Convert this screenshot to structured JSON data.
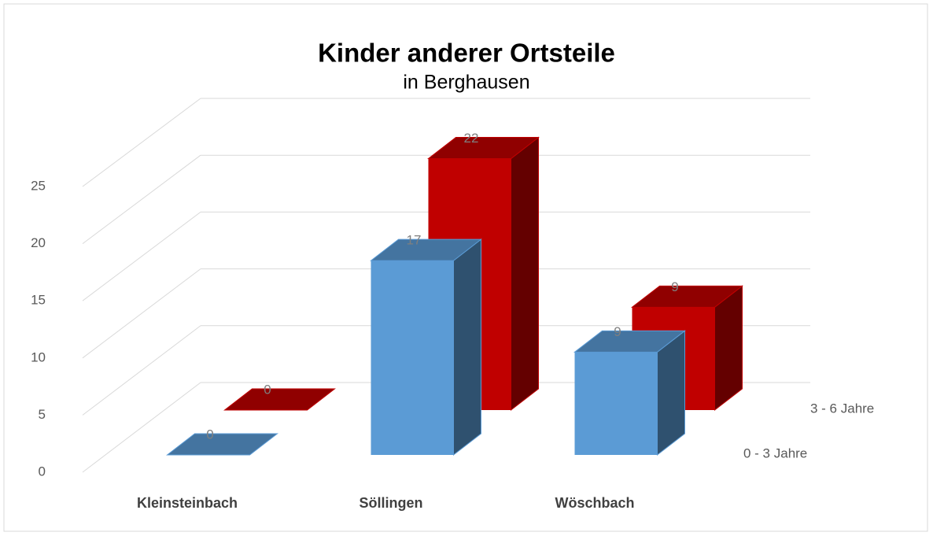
{
  "chart_data": {
    "type": "bar3d",
    "title": "Kinder anderer Ortsteile",
    "subtitle": "in Berghausen",
    "categories": [
      "Kleinsteinbach",
      "Söllingen",
      "Wöschbach"
    ],
    "series": [
      {
        "name": "0 - 3 Jahre",
        "color": "#5b9bd5",
        "values": [
          0,
          17,
          9
        ]
      },
      {
        "name": "3 - 6 Jahre",
        "color": "#c00000",
        "values": [
          0,
          22,
          9
        ]
      }
    ],
    "ylim": [
      0,
      25
    ],
    "yticks": [
      0,
      5,
      10,
      15,
      20,
      25
    ],
    "grid": true
  }
}
